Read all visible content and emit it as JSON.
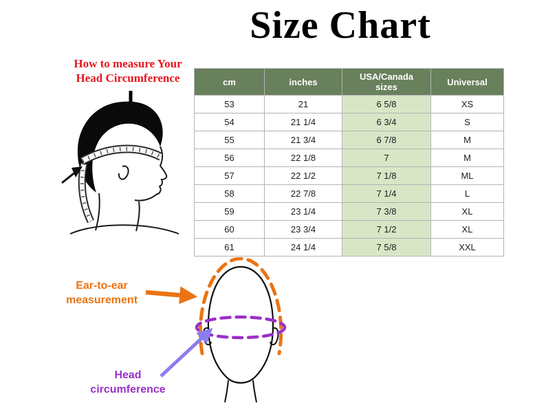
{
  "title": "Size Chart",
  "measure_note": {
    "line1": "How to measure Your",
    "line2": "Head Circumference"
  },
  "size_table": {
    "headers": [
      "cm",
      "inches",
      "USA/Canada\nsizes",
      "Universal"
    ],
    "rows": [
      [
        "53",
        "21",
        "6 5/8",
        "XS"
      ],
      [
        "54",
        "21 1/4",
        "6 3/4",
        "S"
      ],
      [
        "55",
        "21 3/4",
        "6 7/8",
        "M"
      ],
      [
        "56",
        "22 1/8",
        "7",
        "M"
      ],
      [
        "57",
        "22 1/2",
        "7 1/8",
        "ML"
      ],
      [
        "58",
        "22 7/8",
        "7 1/4",
        "L"
      ],
      [
        "59",
        "23 1/4",
        "7 3/8",
        "XL"
      ],
      [
        "60",
        "23 3/4",
        "7 1/2",
        "XL"
      ],
      [
        "61",
        "24 1/4",
        "7 5/8",
        "XXL"
      ]
    ]
  },
  "diagram_labels": {
    "ear_line1": "Ear-to-ear",
    "ear_line2": "measurement",
    "circ_line1": "Head",
    "circ_line2": "circumference"
  },
  "colors": {
    "header_bg": "#69805c",
    "usa_col_bg": "#d8e6c6",
    "note_red": "#e8151e",
    "orange": "#ea7414",
    "purple": "#9b30c8",
    "violet_arrow": "#8b7cf0"
  }
}
